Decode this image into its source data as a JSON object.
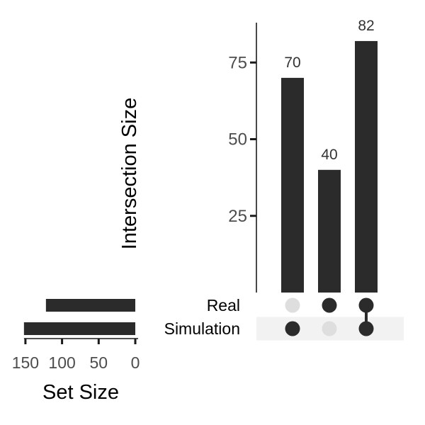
{
  "chart_data": {
    "type": "bar",
    "subtype": "upset",
    "intersection_axis": {
      "label": "Intersection Size",
      "ticks": [
        25,
        50,
        75
      ]
    },
    "set_size_axis": {
      "label": "Set Size",
      "ticks": [
        150,
        100,
        50,
        0
      ]
    },
    "intersections": [
      {
        "sets": [
          "Simulation"
        ],
        "value": 70,
        "label": "70"
      },
      {
        "sets": [
          "Real"
        ],
        "value": 40,
        "label": "40"
      },
      {
        "sets": [
          "Real",
          "Simulation"
        ],
        "value": 82,
        "label": "82"
      }
    ],
    "sets": [
      {
        "name": "Real",
        "size": 122
      },
      {
        "name": "Simulation",
        "size": 152
      }
    ],
    "colors": {
      "bar": "#2b2b2b",
      "dot_active": "#2b2b2b",
      "dot_inactive": "#dedede",
      "row_shade": "#f2f2f2",
      "axis": "#1a1a1a",
      "tick_text": "#4d4d4d",
      "title_text": "#000000"
    }
  }
}
